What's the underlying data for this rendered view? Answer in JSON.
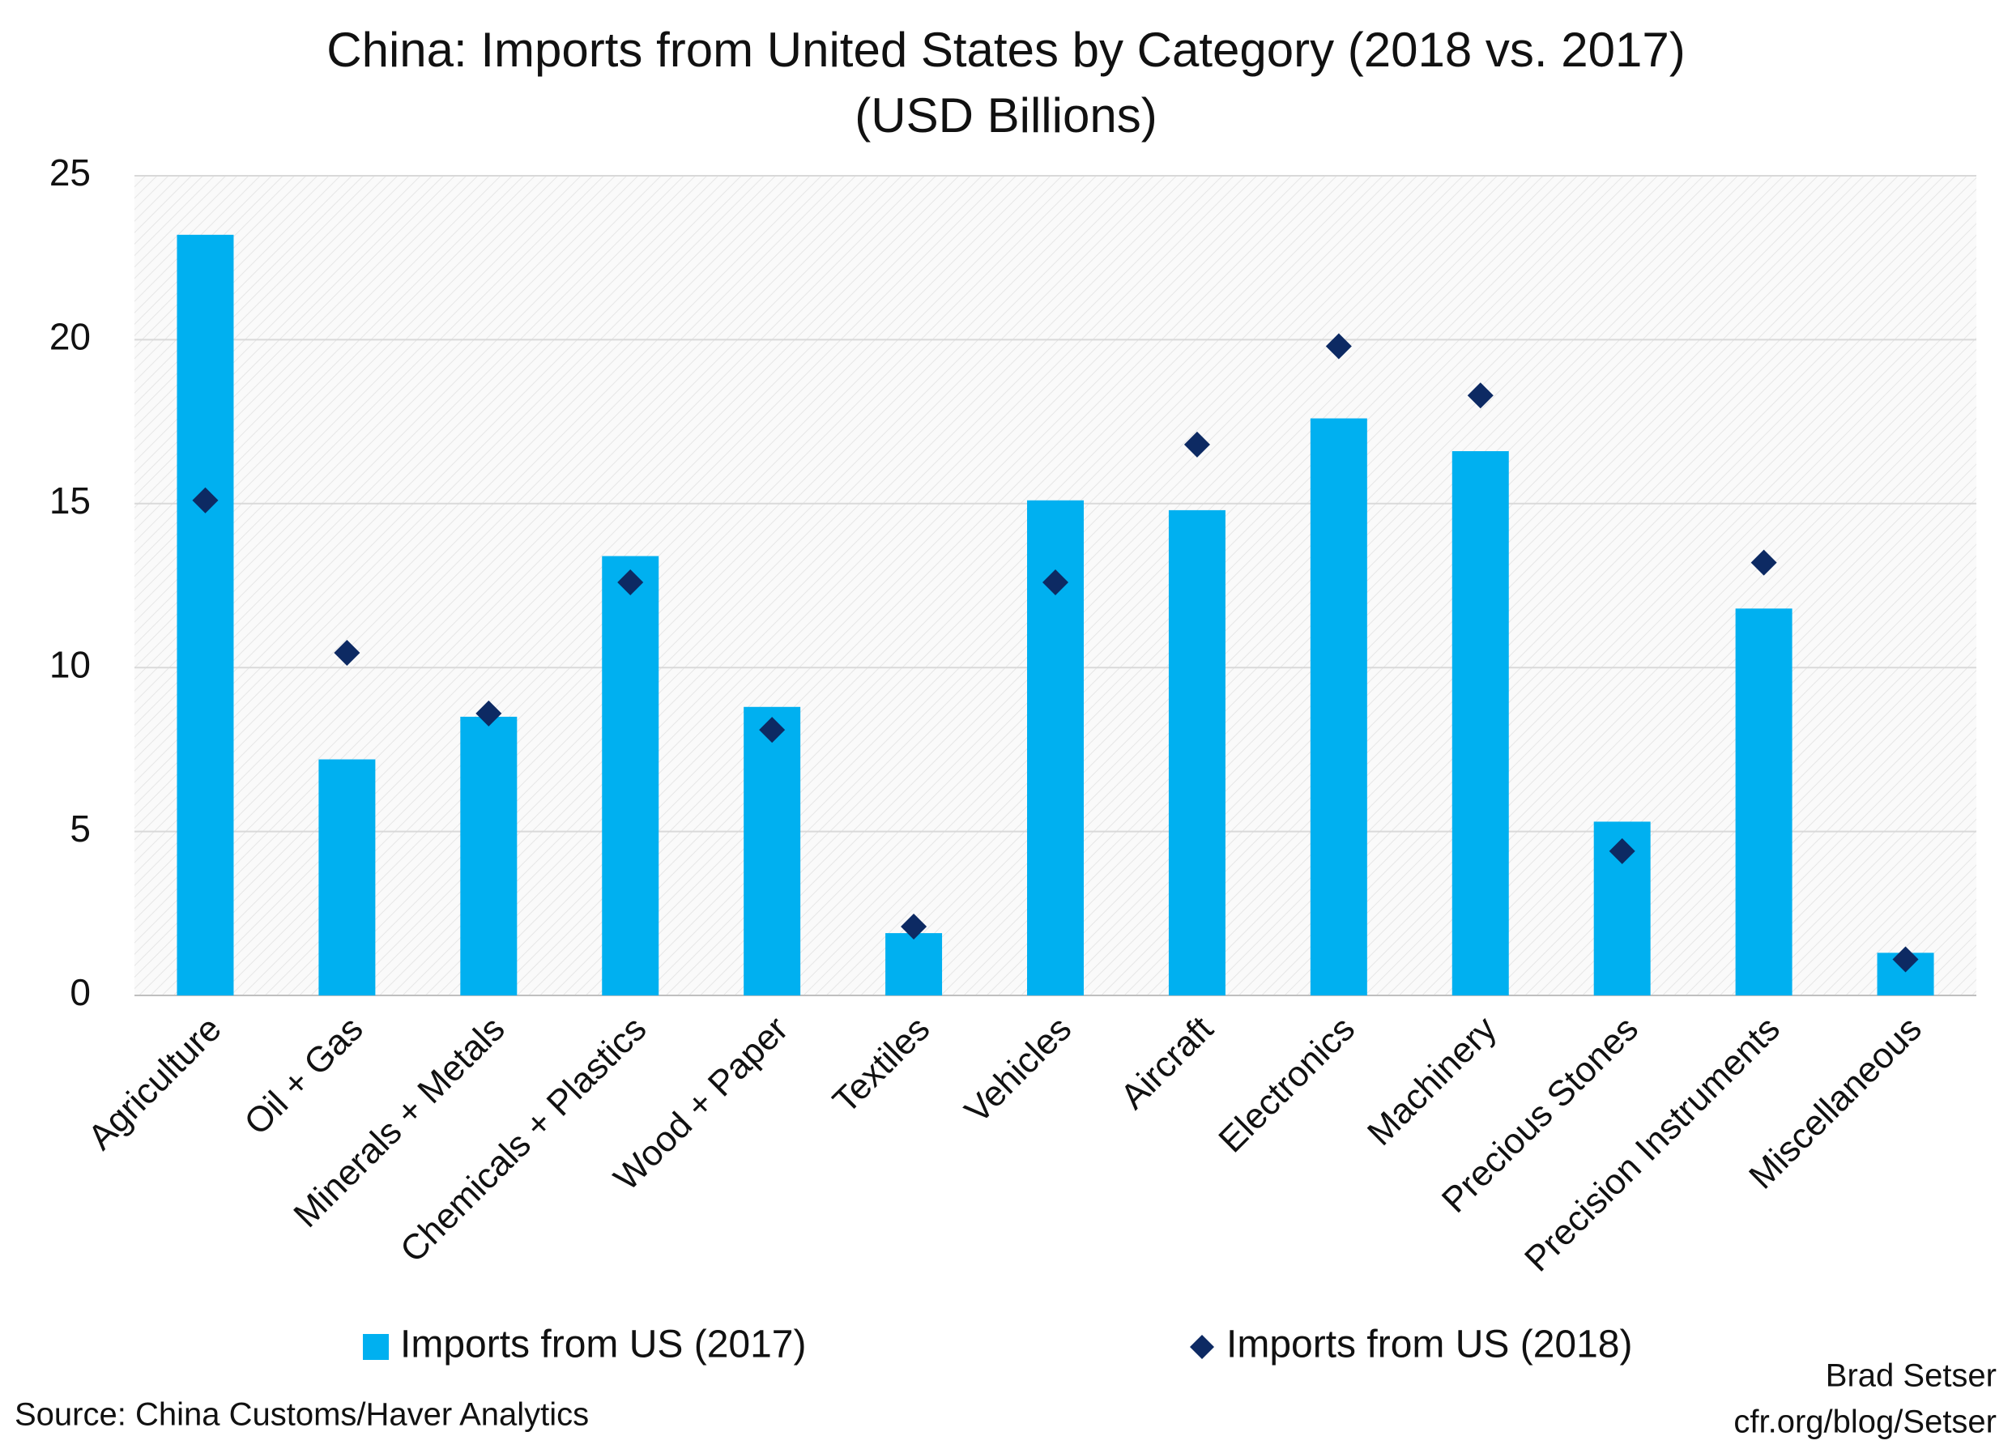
{
  "chart_data": {
    "type": "bar",
    "title": "China: Imports from United States by Category (2018 vs. 2017)",
    "subtitle": "(USD Billions)",
    "categories": [
      "Agriculture",
      "Oil + Gas",
      "Minerals + Metals",
      "Chemicals + Plastics",
      "Wood + Paper",
      "Textiles",
      "Vehicles",
      "Aircraft",
      "Electronics",
      "Machinery",
      "Precious Stones",
      "Precision Instruments",
      "Miscellaneous"
    ],
    "series": [
      {
        "name": "Imports from US (2017)",
        "color": "#00b0f0",
        "mark": "bar",
        "values": [
          23.2,
          7.2,
          8.5,
          13.4,
          8.8,
          1.9,
          15.1,
          14.8,
          17.6,
          16.6,
          5.3,
          11.8,
          1.3
        ]
      },
      {
        "name": "Imports from US (2018)",
        "color": "#0d2a63",
        "mark": "diamond",
        "values": [
          15.1,
          10.45,
          8.6,
          12.6,
          8.1,
          2.1,
          12.6,
          16.8,
          19.8,
          18.3,
          4.4,
          13.2,
          1.1
        ]
      }
    ],
    "ylim": [
      0,
      25
    ],
    "yticks": [
      0,
      5,
      10,
      15,
      20,
      25
    ],
    "grid": true,
    "legend": "bottom",
    "source": "Source: China Customs/Haver Analytics",
    "credit": [
      "Brad Setser",
      "cfr.org/blog/Setser"
    ]
  }
}
